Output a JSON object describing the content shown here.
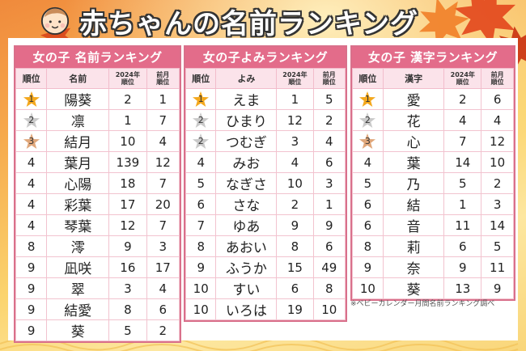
{
  "header": {
    "title": "赤ちゃんの名前ランキング",
    "icon": "baby-face-icon"
  },
  "colors": {
    "table_title_bg": "#e36c8a",
    "table_border": "#d9708b",
    "column_header_bg": "#fbe3ea",
    "gold_star": "#f4a81d",
    "silver_star": "#c9c9c9",
    "bronze_star": "#e0a77a"
  },
  "tables": [
    {
      "title": "女の子 名前ランキング",
      "columns": [
        "順位",
        "名前",
        "2024年\n順位",
        "前月\n順位"
      ],
      "col_rank": "順位",
      "col_name": "名前",
      "col_2024_a": "2024年",
      "col_2024_b": "順位",
      "col_prev_a": "前月",
      "col_prev_b": "順位",
      "rows": [
        {
          "rank": "1",
          "name": "陽葵",
          "y2024": "2",
          "prev": "1",
          "medal": "gold"
        },
        {
          "rank": "2",
          "name": "凛",
          "y2024": "1",
          "prev": "7",
          "medal": "silver"
        },
        {
          "rank": "3",
          "name": "結月",
          "y2024": "10",
          "prev": "4",
          "medal": "bronze"
        },
        {
          "rank": "4",
          "name": "葉月",
          "y2024": "139",
          "prev": "12"
        },
        {
          "rank": "4",
          "name": "心陽",
          "y2024": "18",
          "prev": "7"
        },
        {
          "rank": "4",
          "name": "彩葉",
          "y2024": "17",
          "prev": "20"
        },
        {
          "rank": "4",
          "name": "琴葉",
          "y2024": "12",
          "prev": "7"
        },
        {
          "rank": "8",
          "name": "澪",
          "y2024": "9",
          "prev": "3"
        },
        {
          "rank": "9",
          "name": "凪咲",
          "y2024": "16",
          "prev": "17"
        },
        {
          "rank": "9",
          "name": "翠",
          "y2024": "3",
          "prev": "4"
        },
        {
          "rank": "9",
          "name": "結愛",
          "y2024": "8",
          "prev": "6"
        },
        {
          "rank": "9",
          "name": "葵",
          "y2024": "5",
          "prev": "2"
        }
      ]
    },
    {
      "title": "女の子よみランキング",
      "col_rank": "順位",
      "col_name": "よみ",
      "col_2024_a": "2024年",
      "col_2024_b": "順位",
      "col_prev_a": "前月",
      "col_prev_b": "順位",
      "rows": [
        {
          "rank": "1",
          "name": "えま",
          "y2024": "1",
          "prev": "5",
          "medal": "gold"
        },
        {
          "rank": "2",
          "name": "ひまり",
          "y2024": "12",
          "prev": "2",
          "medal": "silver"
        },
        {
          "rank": "2",
          "name": "つむぎ",
          "y2024": "3",
          "prev": "4",
          "medal": "silver"
        },
        {
          "rank": "4",
          "name": "みお",
          "y2024": "4",
          "prev": "6"
        },
        {
          "rank": "5",
          "name": "なぎさ",
          "y2024": "10",
          "prev": "3"
        },
        {
          "rank": "6",
          "name": "さな",
          "y2024": "2",
          "prev": "1"
        },
        {
          "rank": "7",
          "name": "ゆあ",
          "y2024": "9",
          "prev": "9"
        },
        {
          "rank": "8",
          "name": "あおい",
          "y2024": "8",
          "prev": "6"
        },
        {
          "rank": "9",
          "name": "ふうか",
          "y2024": "15",
          "prev": "49"
        },
        {
          "rank": "10",
          "name": "すい",
          "y2024": "6",
          "prev": "8"
        },
        {
          "rank": "10",
          "name": "いろは",
          "y2024": "19",
          "prev": "10"
        }
      ]
    },
    {
      "title": "女の子 漢字ランキング",
      "col_rank": "順位",
      "col_name": "漢字",
      "col_2024_a": "2024年",
      "col_2024_b": "順位",
      "col_prev_a": "前月",
      "col_prev_b": "順位",
      "rows": [
        {
          "rank": "1",
          "name": "愛",
          "y2024": "2",
          "prev": "6",
          "medal": "gold"
        },
        {
          "rank": "2",
          "name": "花",
          "y2024": "4",
          "prev": "4",
          "medal": "silver"
        },
        {
          "rank": "3",
          "name": "心",
          "y2024": "7",
          "prev": "12",
          "medal": "bronze"
        },
        {
          "rank": "4",
          "name": "葉",
          "y2024": "14",
          "prev": "10"
        },
        {
          "rank": "5",
          "name": "乃",
          "y2024": "5",
          "prev": "2"
        },
        {
          "rank": "6",
          "name": "結",
          "y2024": "1",
          "prev": "3"
        },
        {
          "rank": "6",
          "name": "音",
          "y2024": "11",
          "prev": "14"
        },
        {
          "rank": "8",
          "name": "莉",
          "y2024": "6",
          "prev": "5"
        },
        {
          "rank": "9",
          "name": "奈",
          "y2024": "9",
          "prev": "11"
        },
        {
          "rank": "10",
          "name": "葵",
          "y2024": "13",
          "prev": "9"
        }
      ]
    }
  ],
  "footnote": "※ベビーカレンダー月間名前ランキング調べ"
}
